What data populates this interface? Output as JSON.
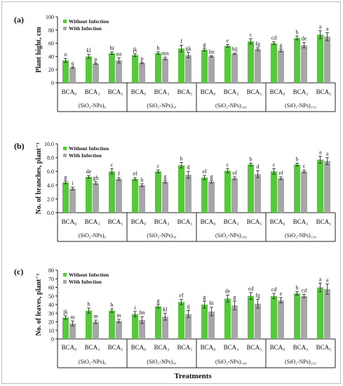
{
  "figure": {
    "xlabel": "Treatments",
    "legend": [
      "Without Infection",
      "With Infection"
    ],
    "colors": {
      "without": "#55c83c",
      "with": "#a6a6a6"
    }
  },
  "chart_data": [
    {
      "type": "bar",
      "panel": "(a)",
      "ylabel": "Plant hight, cm",
      "ylim": [
        0,
        100
      ],
      "yticks": [
        0,
        20,
        40,
        60,
        80,
        100
      ],
      "legend_position": "top-left",
      "groups": [
        "(SiO₂-NPs)₀",
        "(SiO₂-NPs)₅₀",
        "(SiO₂-NPs)₁₀₀",
        "(SiO₂-NPs)₁₅₀"
      ],
      "categories": [
        "BCA₀",
        "BCA₃",
        "BCA₅",
        "BCA₀",
        "BCA₃",
        "BCA₅",
        "BCA₀",
        "BCA₃",
        "BCA₅",
        "BCA₀",
        "BCA₃",
        "BCA₅"
      ],
      "series": [
        {
          "name": "Without Infection",
          "values": [
            34,
            40,
            45,
            42,
            45,
            52,
            50,
            56,
            63,
            60,
            68,
            73
          ],
          "errors": [
            3,
            3,
            2,
            2,
            2,
            5,
            2,
            2,
            4,
            2,
            3,
            6
          ],
          "letters": [
            "o",
            "kl",
            "hi",
            "jk",
            "h",
            "f",
            "g",
            "e",
            "c",
            "cd",
            "b",
            "a"
          ]
        },
        {
          "name": "With Infection",
          "values": [
            23,
            29,
            34,
            30,
            37,
            42,
            40,
            44,
            51,
            49,
            57,
            70
          ],
          "errors": [
            1,
            1,
            4,
            1,
            2,
            4,
            1,
            1,
            2,
            2,
            4,
            6
          ],
          "letters": [
            "q",
            "p",
            "no",
            "p",
            "mn",
            "ijk",
            "lm",
            "hij",
            "fg",
            "g",
            "de",
            "a"
          ]
        }
      ]
    },
    {
      "type": "bar",
      "panel": "(b)",
      "ylabel": "No. of branches, plant⁻¹",
      "ylim": [
        0,
        10
      ],
      "yticks": [
        "0.0",
        "2.0",
        "4.0",
        "6.0",
        "8.0",
        "10.0"
      ],
      "legend_position": "top-left",
      "groups": [
        "(SiO₂-NPs)₀",
        "(SiO₂-NPs)₅₀",
        "(SiO₂-NPs)₁₀₀",
        "(SiO₂-NPs)₁₅₀"
      ],
      "categories": [
        "BCA₀",
        "BCA₃",
        "BCA₅",
        "BCA₀",
        "BCA₃",
        "BCA₅",
        "BCA₀",
        "BCA₃",
        "BCA₅",
        "BCA₀",
        "BCA₃",
        "BCA₅"
      ],
      "series": [
        {
          "name": "Without Infection",
          "values": [
            4.4,
            5.2,
            6.0,
            4.9,
            6.0,
            6.9,
            5.1,
            6.1,
            7.0,
            6.0,
            7.0,
            7.7
          ],
          "errors": [
            0.2,
            0.2,
            0.4,
            0.2,
            0.2,
            0.4,
            0.3,
            0.3,
            0.2,
            0.4,
            0.2,
            0.5
          ],
          "letters": [
            "g",
            "de",
            "c",
            "ef",
            "c",
            "b",
            "ef",
            "c",
            "b",
            "c",
            "b",
            "a"
          ]
        },
        {
          "name": "With Infection",
          "values": [
            3.5,
            4.3,
            4.9,
            4.0,
            4.5,
            5.5,
            4.5,
            5.0,
            5.6,
            5.0,
            6.0,
            7.5
          ],
          "errors": [
            0.2,
            0.2,
            0.2,
            0.2,
            0.2,
            0.5,
            0.2,
            0.2,
            0.5,
            0.2,
            0.2,
            0.5
          ],
          "letters": [
            "i",
            "gh",
            "f",
            "h",
            "g",
            "d",
            "g",
            "ef",
            "d",
            "ef",
            "c",
            "a"
          ]
        }
      ]
    },
    {
      "type": "bar",
      "panel": "(c)",
      "ylabel": "No. of leaves, plant⁻¹",
      "ylim": [
        0,
        80
      ],
      "yticks": [
        0,
        10,
        20,
        30,
        40,
        50,
        60,
        70,
        80
      ],
      "legend_position": "top-left",
      "groups": [
        "(SiO₂-NPs)₀",
        "(SiO₂-NPs)₅₀",
        "(SiO₂-NPs)₁₀₀",
        "(SiO₂-NPs)₁₅₀"
      ],
      "categories": [
        "BCA₀",
        "BCA₃",
        "BCA₅",
        "BCA₀",
        "BCA₃",
        "BCA₅",
        "BCA₀",
        "BCA₃",
        "BCA₅",
        "BCA₀",
        "BCA₃",
        "BCA₅"
      ],
      "series": [
        {
          "name": "Without Infection",
          "values": [
            25,
            33,
            33,
            29,
            38,
            43,
            40,
            47,
            50,
            50,
            53,
            60
          ],
          "errors": [
            2,
            3,
            2,
            3,
            2,
            3,
            4,
            4,
            4,
            3,
            2,
            5
          ],
          "letters": [
            "jk",
            "h",
            "h",
            "i",
            "g",
            "ef",
            "g",
            "de",
            "cd",
            "cd",
            "b",
            "a"
          ]
        },
        {
          "name": "With Infection",
          "values": [
            18,
            20,
            21,
            22,
            26,
            29,
            32,
            39,
            41,
            45,
            50,
            58
          ],
          "errors": [
            3,
            2,
            2,
            4,
            4,
            4,
            5,
            5,
            5,
            3,
            2,
            6
          ],
          "letters": [
            "m",
            "m",
            "m",
            "lm",
            "kl",
            "ij",
            "hi",
            "g",
            "fg",
            "e",
            "cd",
            "a"
          ]
        }
      ]
    }
  ]
}
